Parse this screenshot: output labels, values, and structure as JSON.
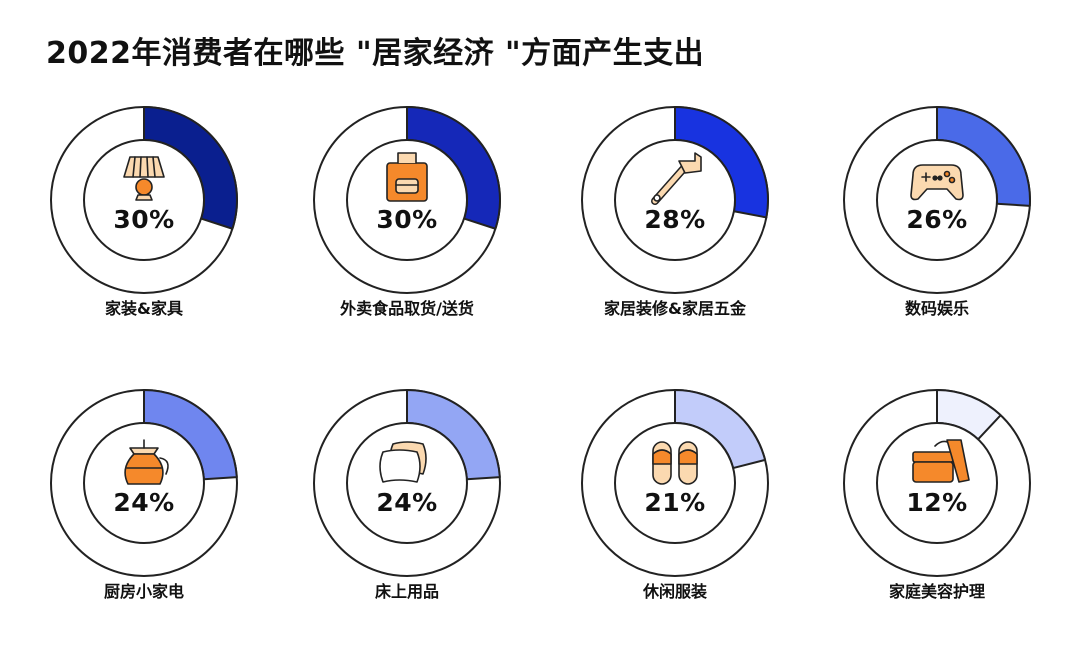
{
  "title": "2022年消费者在哪些 \"居家经济 \"方面产生支出",
  "chart_data": {
    "type": "pie",
    "title": "2022年消费者在哪些 \"居家经济 \"方面产生支出",
    "unit": "%",
    "categories": [
      "家装&家具",
      "外卖食品取货/送货",
      "家居装修&家居五金",
      "数码娱乐",
      "厨房小家电",
      "床上用品",
      "休闲服装",
      "家庭美容护理"
    ],
    "values": [
      30,
      30,
      28,
      26,
      24,
      24,
      21,
      12
    ],
    "labels": [
      "30%",
      "30%",
      "28%",
      "26%",
      "24%",
      "24%",
      "21%",
      "12%"
    ],
    "colors": [
      "#0a1f8f",
      "#1528b8",
      "#1833e0",
      "#4a6ae8",
      "#6f86ef",
      "#93a6f4",
      "#c2ccfa",
      "#eef1fd"
    ],
    "icons": [
      "lamp-icon",
      "takeout-bag-icon",
      "wrench-icon",
      "gamepad-icon",
      "coffee-pot-icon",
      "pillow-icon",
      "slippers-icon",
      "cream-jar-icon"
    ]
  }
}
